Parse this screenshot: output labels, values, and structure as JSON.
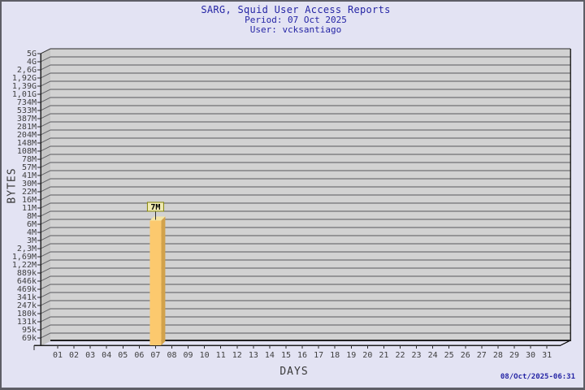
{
  "window": {
    "bg_color": "#E3E3F3",
    "border_color": "#5E5E66"
  },
  "header": {
    "title": "SARG, Squid User Access Reports",
    "period": "Period: 07 Oct 2025",
    "user": "User: vcksantiago",
    "text_color": "#2525A5"
  },
  "footer": {
    "generated": "08/Oct/2025-06:31"
  },
  "chart_data": {
    "type": "bar",
    "title": "SARG, Squid User Access Reports",
    "subtitle": [
      "Period: 07 Oct 2025",
      "User: vcksantiago"
    ],
    "xlabel": "DAYS",
    "ylabel": "BYTES",
    "y_scale": "log",
    "y_top_value": 5000000000,
    "y_bottom_value": 69000,
    "y_tick_labels": [
      "5G",
      "4G",
      "2,6G",
      "1,92G",
      "1,39G",
      "1,01G",
      "734M",
      "533M",
      "387M",
      "281M",
      "204M",
      "148M",
      "108M",
      "78M",
      "57M",
      "41M",
      "30M",
      "22M",
      "16M",
      "11M",
      "8M",
      "6M",
      "4M",
      "3M",
      "2,3M",
      "1,69M",
      "1,22M",
      "889k",
      "646k",
      "469k",
      "341k",
      "247k",
      "180k",
      "131k",
      "95k",
      "69k"
    ],
    "categories": [
      "01",
      "02",
      "03",
      "04",
      "05",
      "06",
      "07",
      "08",
      "09",
      "10",
      "11",
      "12",
      "13",
      "14",
      "15",
      "16",
      "17",
      "18",
      "19",
      "20",
      "21",
      "22",
      "23",
      "24",
      "25",
      "26",
      "27",
      "28",
      "29",
      "30",
      "31"
    ],
    "series": [
      {
        "name": "bytes-per-day",
        "values": [
          0,
          0,
          0,
          0,
          0,
          0,
          7000000,
          0,
          0,
          0,
          0,
          0,
          0,
          0,
          0,
          0,
          0,
          0,
          0,
          0,
          0,
          0,
          0,
          0,
          0,
          0,
          0,
          0,
          0,
          0,
          0
        ]
      }
    ],
    "point_labels": [
      "",
      "",
      "",
      "",
      "",
      "",
      "7M",
      "",
      "",
      "",
      "",
      "",
      "",
      "",
      "",
      "",
      "",
      "",
      "",
      "",
      "",
      "",
      "",
      "",
      "",
      "",
      "",
      "",
      "",
      "",
      ""
    ],
    "grid": true,
    "legend_position": "none",
    "colors": {
      "bar_front": "#FCC96E",
      "bar_side": "#D2A24B",
      "bar_top": "#F5E5A4",
      "plot_bg": "#D2D2D2",
      "wall_bg": "#C5C5C5",
      "grid_line": "#58585C",
      "axis_line": "#2A2A2A",
      "tick_text": "#3F3F3F",
      "label_box_bg": "#F1EBB3",
      "label_box_border": "#84840A"
    }
  }
}
